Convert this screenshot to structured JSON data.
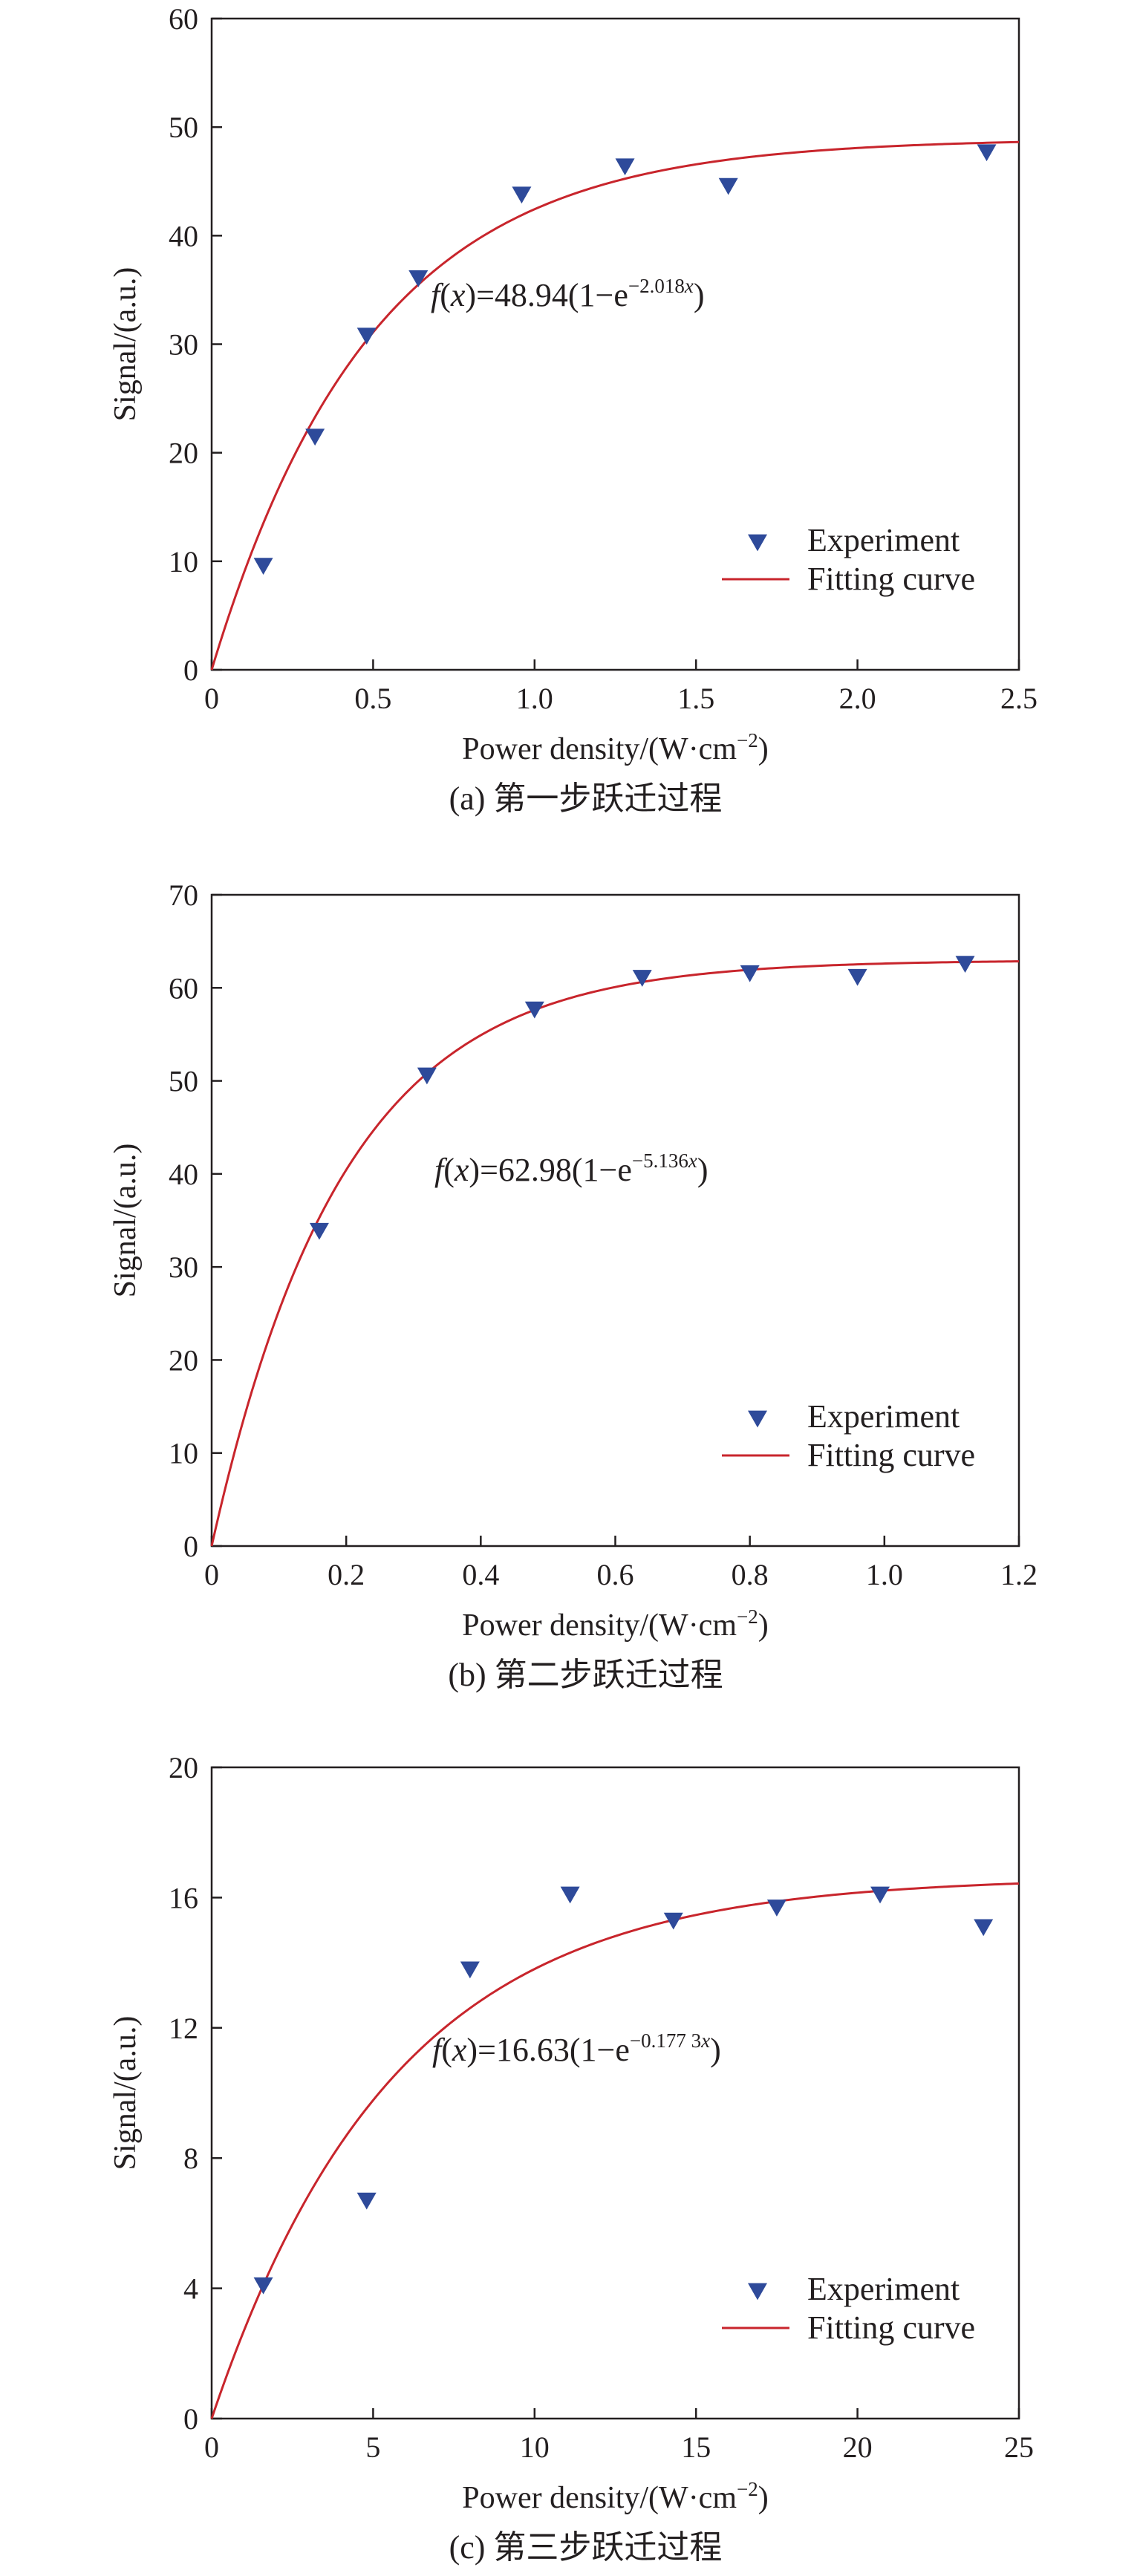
{
  "colors": {
    "marker": "#2e4a9a",
    "fit_curve": "#c8252c",
    "axis": "#231f20"
  },
  "chart_data": [
    {
      "type": "scatter",
      "caption": "(a) 第一步跃迁过程",
      "xlabel": "Power density/(W·cm",
      "xlabel_sup": "−2",
      "xlabel_close": ")",
      "ylabel": "Signal/(a.u.)",
      "xlim": [
        0,
        2.5
      ],
      "ylim": [
        0,
        60
      ],
      "xticks": [
        0,
        0.5,
        1.0,
        1.5,
        2.0,
        2.5
      ],
      "xtick_labels": [
        "0",
        "0.5",
        "1.0",
        "1.5",
        "2.0",
        "2.5"
      ],
      "yticks": [
        0,
        10,
        20,
        30,
        40,
        50,
        60
      ],
      "ytick_labels": [
        "0",
        "10",
        "20",
        "30",
        "40",
        "50",
        "60"
      ],
      "grid": false,
      "legend_position": "bottom-right",
      "series": [
        {
          "name": "Experiment",
          "marker": "triangle-down",
          "x": [
            0.16,
            0.32,
            0.48,
            0.64,
            0.96,
            1.28,
            1.6,
            2.4
          ],
          "y": [
            9.6,
            21.5,
            30.8,
            36.1,
            43.8,
            46.4,
            44.6,
            47.7
          ]
        },
        {
          "name": "Fitting curve",
          "kind": "fit",
          "model": {
            "A": 48.94,
            "k": 2.018
          },
          "x_range": [
            0,
            2.5
          ]
        }
      ],
      "annotation": {
        "f": "f",
        "open": "(",
        "x": "x",
        "mid": ")=48.94(1−e",
        "sup": "−2.018",
        "sup_x": "x",
        "close": ")"
      }
    },
    {
      "type": "scatter",
      "caption": "(b) 第二步跃迁过程",
      "xlabel": "Power density/(W·cm",
      "xlabel_sup": "−2",
      "xlabel_close": ")",
      "ylabel": "Signal/(a.u.)",
      "xlim": [
        0,
        1.2
      ],
      "ylim": [
        0,
        70
      ],
      "xticks": [
        0,
        0.2,
        0.4,
        0.6,
        0.8,
        1.0,
        1.2
      ],
      "xtick_labels": [
        "0",
        "0.2",
        "0.4",
        "0.6",
        "0.8",
        "1.0",
        "1.2"
      ],
      "yticks": [
        0,
        10,
        20,
        30,
        40,
        50,
        60,
        70
      ],
      "ytick_labels": [
        "0",
        "10",
        "20",
        "30",
        "40",
        "50",
        "60",
        "70"
      ],
      "grid": false,
      "legend_position": "bottom-right",
      "series": [
        {
          "name": "Experiment",
          "marker": "triangle-down",
          "x": [
            0.16,
            0.32,
            0.48,
            0.64,
            0.8,
            0.96,
            1.12
          ],
          "y": [
            33.9,
            50.6,
            57.7,
            61.1,
            61.6,
            61.2,
            62.6
          ]
        },
        {
          "name": "Fitting curve",
          "kind": "fit",
          "model": {
            "A": 62.98,
            "k": 5.136
          },
          "x_range": [
            0,
            1.2
          ]
        }
      ],
      "annotation": {
        "f": "f",
        "open": "(",
        "x": "x",
        "mid": ")=62.98(1−e",
        "sup": "−5.136",
        "sup_x": "x",
        "close": ")"
      }
    },
    {
      "type": "scatter",
      "caption": "(c) 第三步跃迁过程",
      "xlabel": "Power density/(W·cm",
      "xlabel_sup": "−2",
      "xlabel_close": ")",
      "ylabel": "Signal/(a.u.)",
      "xlim": [
        0,
        25
      ],
      "ylim": [
        0,
        20
      ],
      "xticks": [
        0,
        5,
        10,
        15,
        20,
        25
      ],
      "xtick_labels": [
        "0",
        "5",
        "10",
        "15",
        "20",
        "25"
      ],
      "yticks": [
        0,
        4,
        8,
        12,
        16,
        20
      ],
      "ytick_labels": [
        "0",
        "4",
        "8",
        "12",
        "16",
        "20"
      ],
      "grid": false,
      "legend_position": "bottom-right",
      "series": [
        {
          "name": "Experiment",
          "marker": "triangle-down",
          "x": [
            1.6,
            4.8,
            8.0,
            11.1,
            14.3,
            17.5,
            20.7,
            23.9
          ],
          "y": [
            4.1,
            6.7,
            13.8,
            16.1,
            15.3,
            15.7,
            16.1,
            15.1
          ]
        },
        {
          "name": "Fitting curve",
          "kind": "fit",
          "model": {
            "A": 16.63,
            "k": 0.1773
          },
          "x_range": [
            0,
            25
          ]
        }
      ],
      "annotation": {
        "f": "f",
        "open": "(",
        "x": "x",
        "mid": ")=16.63(1−e",
        "sup": "−0.177 3",
        "sup_x": "x",
        "close": ")"
      }
    }
  ]
}
